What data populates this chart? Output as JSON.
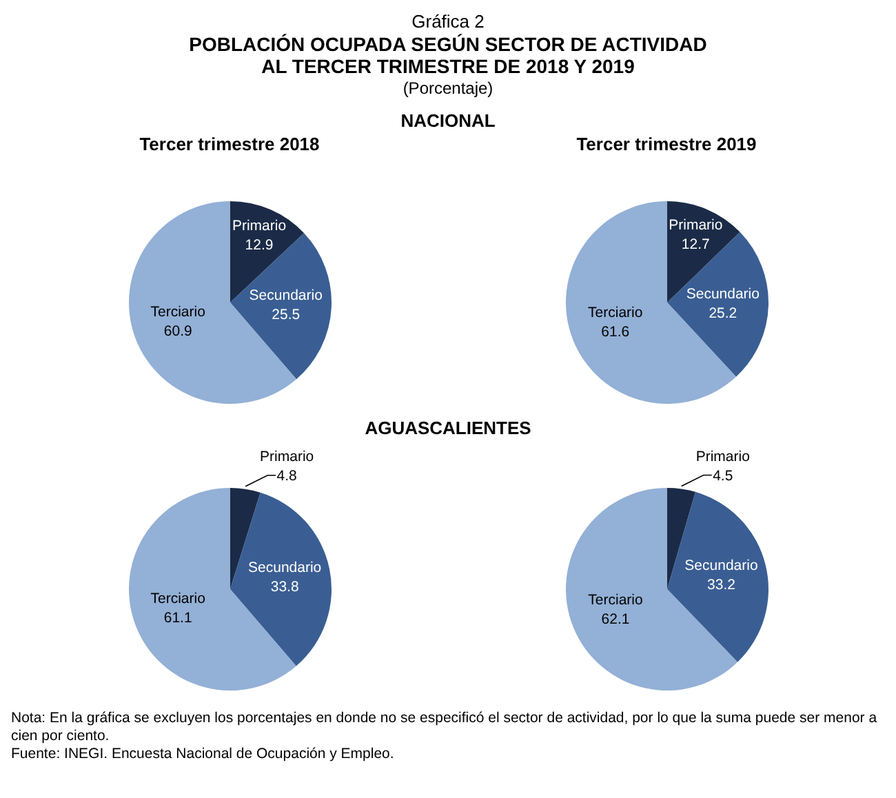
{
  "chart_data": [
    {
      "type": "pie",
      "title": "Tercer trimestre 2018",
      "subtitle": "NACIONAL",
      "annotations": [
        "Gráfica 2",
        "POBLACIÓN OCUPADA SEGÚN SECTOR DE ACTIVIDAD",
        "AL TERCER TRIMESTRE DE 2018 Y 2019",
        "(Porcentaje)"
      ],
      "categories": [
        "Primario",
        "Secundario",
        "Terciario"
      ],
      "values": [
        12.9,
        25.5,
        60.9
      ],
      "colors": [
        "#1b2b47",
        "#3a5e93",
        "#93b0d6"
      ],
      "data_labels": true,
      "legend": false
    },
    {
      "type": "pie",
      "title": "Tercer trimestre 2019",
      "categories": [
        "Primario",
        "Secundario",
        "Terciario"
      ],
      "values": [
        12.7,
        25.2,
        61.6
      ],
      "colors": [
        "#1b2b47",
        "#3a5e93",
        "#93b0d6"
      ],
      "data_labels": true,
      "legend": false
    },
    {
      "type": "pie",
      "subtitle": "AGUASCALIENTES",
      "categories": [
        "Primario",
        "Secundario",
        "Terciario"
      ],
      "values": [
        4.8,
        33.8,
        61.1
      ],
      "colors": [
        "#1b2b47",
        "#3a5e93",
        "#93b0d6"
      ],
      "data_labels": true,
      "legend": false
    },
    {
      "type": "pie",
      "annotations": [
        "Nota: En la gráfica se excluyen los porcentajes en donde no se especificó el sector de actividad, por lo que la suma puede ser menor a cien por ciento.",
        "Fuente: INEGI. Encuesta Nacional de Ocupación y Empleo."
      ],
      "categories": [
        "Primario",
        "Secundario",
        "Terciario"
      ],
      "values": [
        4.5,
        33.2,
        62.1
      ],
      "colors": [
        "#1b2b47",
        "#3a5e93",
        "#93b0d6"
      ],
      "data_labels": true,
      "legend": false
    }
  ]
}
